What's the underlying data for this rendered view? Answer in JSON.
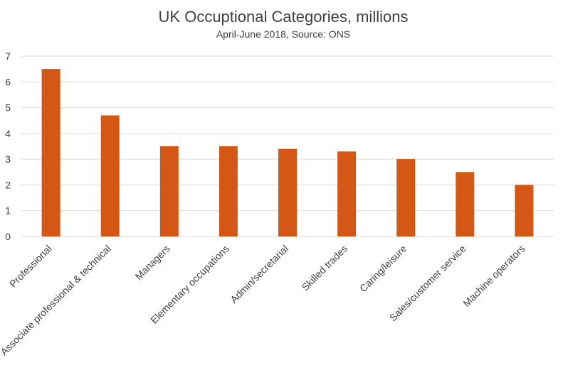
{
  "chart_data": {
    "type": "bar",
    "title": "UK Occuptional Categories, millions",
    "subtitle": "April-June 2018, Source: ONS",
    "xlabel": "",
    "ylabel": "",
    "categories": [
      "Professional",
      "Associate professional & technical",
      "Managers",
      "Elementary occupations",
      "Admin/secretarial",
      "Skilled trades",
      "Caring/leisure",
      "Sales/customer service",
      "Machine operators"
    ],
    "values": [
      6.5,
      4.7,
      3.5,
      3.5,
      3.4,
      3.3,
      3.0,
      2.5,
      2.0
    ],
    "ylim": [
      0,
      7
    ],
    "yticks": [
      0,
      1,
      2,
      3,
      4,
      5,
      6,
      7
    ],
    "grid": true,
    "legend": "none",
    "bar_color": "#d45716"
  }
}
